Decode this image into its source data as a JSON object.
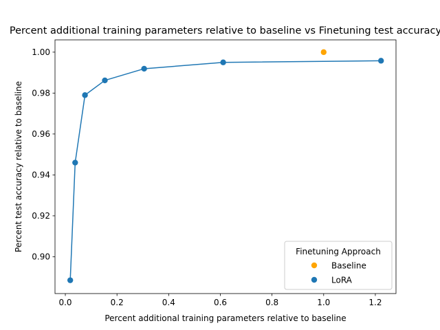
{
  "chart_data": {
    "type": "scatter",
    "title": "Percent additional training parameters relative to baseline vs Finetuning test accuracy",
    "xlabel": "Percent additional training parameters relative to baseline",
    "ylabel": "Percent test accuracy relative to baseline",
    "xlim": [
      -0.04,
      1.28
    ],
    "ylim": [
      0.882,
      1.006
    ],
    "xticks": [
      0.0,
      0.2,
      0.4,
      0.6,
      0.8,
      1.0,
      1.2
    ],
    "xtick_labels": [
      "0.0",
      "0.2",
      "0.4",
      "0.6",
      "0.8",
      "1.0",
      "1.2"
    ],
    "yticks": [
      0.9,
      0.92,
      0.94,
      0.96,
      0.98,
      1.0
    ],
    "ytick_labels": [
      "0.90",
      "0.92",
      "0.94",
      "0.96",
      "0.98",
      "1.00"
    ],
    "grid": false,
    "legend": {
      "title": "Finetuning Approach",
      "placement": "lower-right"
    },
    "series": [
      {
        "name": "Baseline",
        "color": "#ffa500",
        "line": false,
        "x": [
          1.0
        ],
        "y": [
          1.0
        ]
      },
      {
        "name": "LoRA",
        "color": "#1f77b4",
        "line": true,
        "x": [
          0.019,
          0.038,
          0.076,
          0.153,
          0.305,
          0.611,
          1.222
        ],
        "y": [
          0.8885,
          0.946,
          0.979,
          0.9862,
          0.9919,
          0.995,
          0.9958
        ]
      }
    ]
  }
}
